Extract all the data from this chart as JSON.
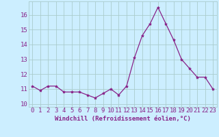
{
  "x": [
    0,
    1,
    2,
    3,
    4,
    5,
    6,
    7,
    8,
    9,
    10,
    11,
    12,
    13,
    14,
    15,
    16,
    17,
    18,
    19,
    20,
    21,
    22,
    23
  ],
  "y": [
    11.2,
    10.9,
    11.2,
    11.2,
    10.8,
    10.8,
    10.8,
    10.6,
    10.4,
    10.7,
    11.0,
    10.6,
    11.2,
    13.1,
    14.6,
    15.4,
    16.5,
    15.4,
    14.3,
    13.0,
    12.4,
    11.8,
    11.8,
    11.0
  ],
  "line_color": "#882288",
  "marker": "*",
  "marker_size": 3,
  "bg_color": "#cceeff",
  "grid_color": "#aacccc",
  "tick_color": "#882288",
  "label_color": "#882288",
  "xlabel": "Windchill (Refroidissement éolien,°C)",
  "ylim": [
    9.8,
    16.9
  ],
  "xlim": [
    -0.5,
    23.5
  ],
  "yticks": [
    10,
    11,
    12,
    13,
    14,
    15,
    16
  ],
  "xticks": [
    0,
    1,
    2,
    3,
    4,
    5,
    6,
    7,
    8,
    9,
    10,
    11,
    12,
    13,
    14,
    15,
    16,
    17,
    18,
    19,
    20,
    21,
    22,
    23
  ],
  "font_size": 6.5
}
